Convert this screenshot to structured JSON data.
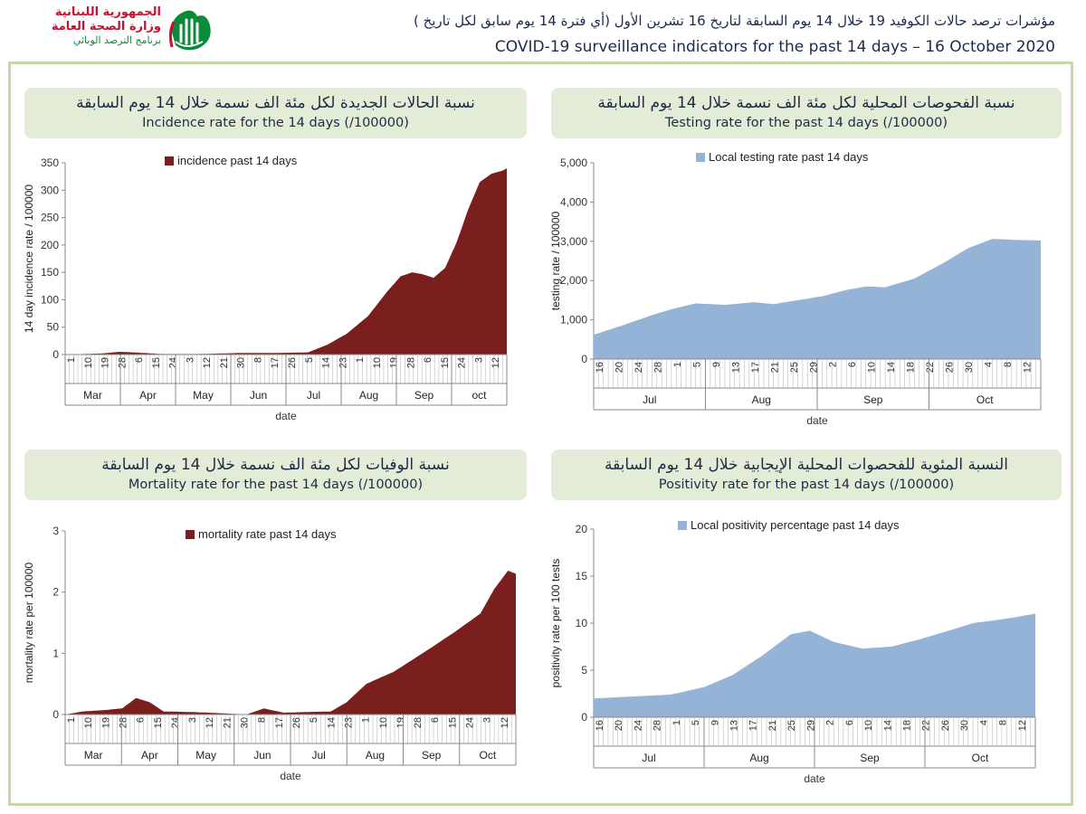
{
  "logo": {
    "line1": "الجمهورية اللبنانية",
    "line2": "وزارة الصحة العامة",
    "line3": "برنامج الترصد الوبائي"
  },
  "header": {
    "title_ar": "مؤشرات ترصد حالات الكوفيد 19 خلال 14 يوم السابقة لتاريخ 16 تشرين الأول (أي فترة 14 يوم سابق لكل تاريخ )",
    "title_en": "COVID-19 surveillance indicators for the past 14 days – 16 October 2020"
  },
  "colors": {
    "maroon": "#7a1e1e",
    "blue": "#95b3d7",
    "frame": "#c5d9a6",
    "banner": "#e3ecd6"
  },
  "chart_data": [
    {
      "type": "area",
      "banner_ar": "نسبة الحالات الجديدة لكل مئة الف نسمة خلال 14 يوم السابقة",
      "banner_en": "Incidence rate for the 14 days  (/100000)",
      "legend": "incidence past 14 days",
      "xlabel": "date",
      "ylabel": "14 day incidence rate / 100000",
      "ylim": [
        0,
        350
      ],
      "yticks": [
        "0",
        "50",
        "100",
        "150",
        "200",
        "250",
        "300",
        "350"
      ],
      "day_labels": [
        "1",
        "10",
        "19",
        "28",
        "6",
        "15",
        "24",
        "3",
        "12",
        "21",
        "30",
        "8",
        "17",
        "26",
        "5",
        "14",
        "23",
        "1",
        "10",
        "19",
        "28",
        "6",
        "15",
        "24",
        "3",
        "12"
      ],
      "months": [
        "Mar",
        "Apr",
        "May",
        "Jun",
        "Jul",
        "Aug",
        "Sep",
        "oct"
      ],
      "x": [
        "2020-03-01",
        "2020-03-20",
        "2020-03-29",
        "2020-04-05",
        "2020-04-20",
        "2020-05-10",
        "2020-06-01",
        "2020-06-20",
        "2020-07-05",
        "2020-07-15",
        "2020-07-25",
        "2020-08-05",
        "2020-08-15",
        "2020-08-22",
        "2020-08-28",
        "2020-09-02",
        "2020-09-08",
        "2020-09-14",
        "2020-09-20",
        "2020-09-26",
        "2020-10-02",
        "2020-10-08",
        "2020-10-14",
        "2020-10-16"
      ],
      "values": [
        0,
        2,
        5,
        4,
        1,
        1,
        3,
        3,
        4,
        18,
        38,
        70,
        115,
        143,
        150,
        147,
        140,
        158,
        205,
        265,
        315,
        330,
        336,
        340
      ]
    },
    {
      "type": "area",
      "banner_ar": "نسبة الفحوصات المحلية لكل مئة الف نسمة خلال 14 يوم السابقة",
      "banner_en": "Testing rate for the past 14 days (/100000)",
      "legend": "Local testing rate past 14 days",
      "xlabel": "date",
      "ylabel": "testing rate / 100000",
      "ylim": [
        0,
        5000
      ],
      "yticks": [
        "0",
        "1,000",
        "2,000",
        "3,000",
        "4,000",
        "5,000"
      ],
      "day_labels": [
        "16",
        "20",
        "24",
        "28",
        "1",
        "5",
        "9",
        "13",
        "17",
        "21",
        "25",
        "29",
        "2",
        "6",
        "10",
        "14",
        "18",
        "22",
        "26",
        "30",
        "4",
        "8",
        "12"
      ],
      "months": [
        "Jul",
        "Aug",
        "Sep",
        "Oct"
      ],
      "x": [
        "2020-07-16",
        "2020-07-22",
        "2020-07-28",
        "2020-08-01",
        "2020-08-06",
        "2020-08-12",
        "2020-08-18",
        "2020-08-22",
        "2020-08-28",
        "2020-09-01",
        "2020-09-06",
        "2020-09-10",
        "2020-09-14",
        "2020-09-20",
        "2020-09-26",
        "2020-10-01",
        "2020-10-06",
        "2020-10-10",
        "2020-10-16"
      ],
      "values": [
        620,
        860,
        1120,
        1270,
        1420,
        1380,
        1450,
        1400,
        1520,
        1600,
        1760,
        1850,
        1830,
        2050,
        2450,
        2820,
        3060,
        3040,
        3020
      ]
    },
    {
      "type": "area",
      "banner_ar": "نسبة الوفيات لكل مئة الف نسمة خلال 14 يوم السابقة",
      "banner_en": "Mortality rate for the past 14 days (/100000)",
      "legend": "mortality rate past 14 days",
      "xlabel": "date",
      "ylabel": "mortality rate per 100000",
      "ylim": [
        0,
        3
      ],
      "yticks": [
        "0",
        "1",
        "2",
        "3"
      ],
      "day_labels": [
        "1",
        "10",
        "19",
        "28",
        "6",
        "15",
        "24",
        "3",
        "12",
        "21",
        "30",
        "8",
        "17",
        "26",
        "5",
        "14",
        "23",
        "1",
        "10",
        "19",
        "28",
        "6",
        "15",
        "24",
        "3",
        "12"
      ],
      "months": [
        "Mar",
        "Apr",
        "May",
        "Jun",
        "Jul",
        "Aug",
        "Sep",
        "Oct"
      ],
      "x": [
        "2020-03-01",
        "2020-03-10",
        "2020-03-20",
        "2020-03-30",
        "2020-04-06",
        "2020-04-13",
        "2020-04-20",
        "2020-05-05",
        "2020-05-20",
        "2020-06-01",
        "2020-06-10",
        "2020-06-20",
        "2020-07-01",
        "2020-07-14",
        "2020-07-22",
        "2020-08-01",
        "2020-08-15",
        "2020-09-01",
        "2020-09-15",
        "2020-09-28",
        "2020-10-05",
        "2020-10-12",
        "2020-10-16"
      ],
      "values": [
        0,
        0.05,
        0.07,
        0.1,
        0.27,
        0.2,
        0.05,
        0.04,
        0.02,
        0,
        0.1,
        0.03,
        0.04,
        0.05,
        0.2,
        0.5,
        0.7,
        1.05,
        1.35,
        1.65,
        2.05,
        2.35,
        2.3
      ]
    },
    {
      "type": "area",
      "banner_ar": "النسبة المئوية للفحصوات المحلية الإيجابية خلال 14 يوم السابقة",
      "banner_en": "Positivity rate for the past 14 days (/100000)",
      "legend": "Local positivity percentage past 14 days",
      "xlabel": "date",
      "ylabel": "positivity rate per 100 tests",
      "ylim": [
        0,
        20
      ],
      "yticks": [
        "0",
        "5",
        "10",
        "15",
        "20"
      ],
      "day_labels": [
        "16",
        "20",
        "24",
        "28",
        "1",
        "5",
        "9",
        "13",
        "17",
        "21",
        "25",
        "29",
        "2",
        "6",
        "10",
        "14",
        "18",
        "22",
        "26",
        "30",
        "4",
        "8",
        "12"
      ],
      "months": [
        "Jul",
        "Aug",
        "Sep",
        "Oct"
      ],
      "x": [
        "2020-07-16",
        "2020-07-24",
        "2020-08-01",
        "2020-08-08",
        "2020-08-14",
        "2020-08-20",
        "2020-08-26",
        "2020-08-30",
        "2020-09-04",
        "2020-09-10",
        "2020-09-16",
        "2020-09-22",
        "2020-09-28",
        "2020-10-03",
        "2020-10-09",
        "2020-10-16"
      ],
      "values": [
        2,
        2.2,
        2.4,
        3.2,
        4.5,
        6.5,
        8.8,
        9.2,
        8,
        7.3,
        7.5,
        8.3,
        9.2,
        10,
        10.4,
        11
      ]
    }
  ]
}
